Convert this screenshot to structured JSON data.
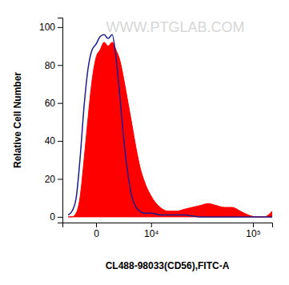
{
  "chart_data": {
    "type": "histogram",
    "annotations": [
      "WWW.PTGLAB.COM"
    ],
    "x_label": "CL488-98033(CD56),FITC-A",
    "y_label": "Relative Cell Number",
    "log": "x",
    "x": [
      -3800,
      -3150,
      -2500,
      -1950,
      -1400,
      -900,
      -430,
      0,
      430,
      900,
      1400,
      1950,
      2500,
      3150,
      3800,
      4550,
      5350,
      6200,
      7100,
      8100,
      10000,
      12900,
      15900,
      19400,
      23400,
      28100,
      33600,
      39900,
      47300,
      55900,
      65900,
      77600,
      91100,
      107000,
      125000,
      146000
    ],
    "series": [
      {
        "type": "area",
        "color": "#ff0000",
        "values": [
          0,
          0,
          2,
          10,
          30,
          52,
          72,
          84,
          88,
          92,
          90,
          92,
          88,
          82,
          72,
          60,
          48,
          36,
          26,
          19,
          11,
          5,
          3,
          3,
          4,
          5,
          6,
          7,
          6,
          5,
          5,
          3,
          1,
          0,
          0,
          3
        ]
      },
      {
        "type": "line",
        "color": "#1c1c8a",
        "values": [
          1,
          3,
          10,
          30,
          58,
          78,
          88,
          91,
          95,
          96,
          94,
          96,
          84,
          62,
          40,
          22,
          10,
          5,
          3,
          2,
          2,
          1,
          1,
          1,
          1,
          0.5,
          0,
          0,
          0,
          0,
          0,
          0,
          0,
          0,
          0,
          0
        ]
      }
    ],
    "xlim": [
      -4860,
      146000
    ],
    "xticks": [
      0,
      {
        "value": 10000,
        "label": "10⁴"
      },
      {
        "value": 100000,
        "label": "10⁵"
      }
    ],
    "ylim": [
      -3,
      105
    ],
    "yticks": [
      0,
      20,
      40,
      60,
      80,
      100
    ]
  }
}
